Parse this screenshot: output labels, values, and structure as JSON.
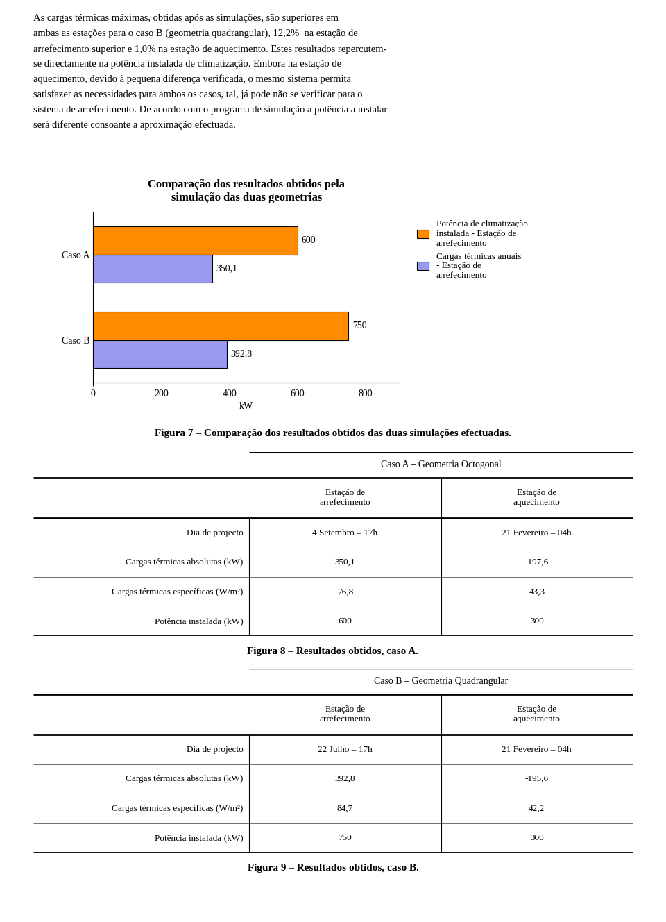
{
  "paragraph": [
    "As cargas térmicas máximas, obtidas após as simulações, são superiores em",
    "ambas as estações para o caso B (geometria quadrangular), 12,2%  na estação de",
    "arrefecimento superior e 1,0% na estação de aquecimento. Estes resultados repercutem-",
    "se directamente na potência instalada de climatização. Embora na estação de",
    "aquecimento, devido à pequena diferença verificada, o mesmo sistema permita",
    "satisfazer as necessidades para ambos os casos, tal, já pode não se verificar para o",
    "sistema de arrefecimento. De acordo com o programa de simulação a potência a instalar",
    "será diferente consoante a aproximação efectuada."
  ],
  "chart_data": {
    "type": "bar",
    "orientation": "horizontal",
    "title": "Comparação dos resultados obtidos pela\nsimulação das duas geometrias",
    "categories": [
      "Caso A",
      "Caso B"
    ],
    "series": [
      {
        "name": "Potência de climatização\ninstalada - Estação de\narrefecimento",
        "color": "#FF8C00",
        "values": [
          600,
          750
        ]
      },
      {
        "name": "Cargas térmicas anuais\n- Estação de\narrefecimento",
        "color": "#9999EE",
        "values": [
          350.1,
          392.8
        ],
        "value_labels": [
          "350,1",
          "392,8"
        ]
      }
    ],
    "data_labels": true,
    "xlabel": "kW",
    "xlim": [
      0,
      900
    ],
    "xticks": [
      0,
      200,
      400,
      600,
      800
    ],
    "legend": "upper left",
    "caption": "Figura 7 – Comparação dos resultados obtidos das duas simulações efectuadas."
  },
  "tables": [
    {
      "title": "Caso A – Geometria Octogonal",
      "columns": [
        "Estação de\narrefecimento",
        "Estação de\naquecimento"
      ],
      "rows": [
        [
          "Dia de projecto",
          "4 Setembro – 17h",
          "21 Fevereiro – 04h"
        ],
        [
          "Cargas térmicas absolutas (kW)",
          "350,1",
          "-197,6"
        ],
        [
          "Cargas térmicas específicas (W/m²)",
          "76,8",
          "43,3"
        ],
        [
          "Potência instalada (kW)",
          "600",
          "300"
        ]
      ],
      "caption": "Figura 8 – Resultados obtidos, caso A."
    },
    {
      "title": "Caso B – Geometria Quadrangular",
      "columns": [
        "Estação de\narrefecimento",
        "Estação de\naquecimento"
      ],
      "rows": [
        [
          "Dia de projecto",
          "22 Julho – 17h",
          "21 Fevereiro – 04h"
        ],
        [
          "Cargas térmicas absolutas (kW)",
          "392,8",
          "-195,6"
        ],
        [
          "Cargas térmicas específicas (W/m²)",
          "84,7",
          "42,2"
        ],
        [
          "Potência instalada (kW)",
          "750",
          "300"
        ]
      ],
      "caption": "Figura 9 – Resultados obtidos, caso B."
    }
  ]
}
